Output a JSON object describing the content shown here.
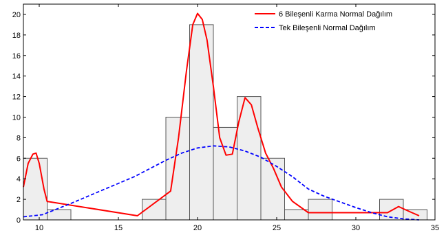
{
  "chart_data": {
    "type": "bar",
    "xlim": [
      9,
      35
    ],
    "ylim": [
      0,
      21
    ],
    "x_ticks": [
      10,
      15,
      20,
      25,
      30,
      35
    ],
    "y_ticks": [
      0,
      2,
      4,
      6,
      8,
      10,
      12,
      14,
      16,
      18,
      20
    ],
    "x_tick_labels": [
      "10",
      "15",
      "20",
      "25",
      "30",
      "35"
    ],
    "y_tick_labels": [
      "0",
      "2",
      "4",
      "6",
      "8",
      "10",
      "12",
      "14",
      "16",
      "18",
      "20"
    ],
    "grid": false,
    "legend_position": "top-right",
    "histogram": {
      "bin_width": 1.5,
      "bins": [
        {
          "start": 9.0,
          "count": 6
        },
        {
          "start": 10.5,
          "count": 1
        },
        {
          "start": 12.0,
          "count": 0
        },
        {
          "start": 13.5,
          "count": 0
        },
        {
          "start": 15.0,
          "count": 0
        },
        {
          "start": 16.5,
          "count": 2
        },
        {
          "start": 18.0,
          "count": 10
        },
        {
          "start": 19.5,
          "count": 19
        },
        {
          "start": 21.0,
          "count": 9
        },
        {
          "start": 22.5,
          "count": 12
        },
        {
          "start": 24.0,
          "count": 6
        },
        {
          "start": 25.5,
          "count": 1
        },
        {
          "start": 27.0,
          "count": 2
        },
        {
          "start": 28.5,
          "count": 0
        },
        {
          "start": 30.0,
          "count": 0
        },
        {
          "start": 31.5,
          "count": 2
        },
        {
          "start": 33.0,
          "count": 1
        }
      ],
      "fill_color": "#eeeeee",
      "edge_color": "#555555"
    },
    "series": [
      {
        "name": "6 Bileşenli Karma Normal Dağılım",
        "style": "solid",
        "color": "#ff0000",
        "x": [
          9.0,
          9.3,
          9.6,
          9.8,
          10.0,
          10.3,
          10.5,
          16.2,
          18.3,
          18.8,
          19.3,
          19.7,
          20.0,
          20.3,
          20.6,
          21.0,
          21.4,
          21.8,
          22.2,
          22.6,
          23.0,
          23.4,
          23.8,
          24.3,
          24.8,
          25.3,
          26.0,
          27.0,
          32.0,
          32.7,
          33.4,
          34.0
        ],
        "y": [
          3.2,
          5.5,
          6.4,
          6.5,
          5.5,
          3.0,
          1.8,
          0.4,
          2.8,
          8.0,
          14.5,
          19.0,
          20.1,
          19.5,
          17.5,
          13.0,
          8.0,
          6.3,
          6.4,
          9.5,
          11.9,
          11.2,
          9.0,
          6.5,
          5.0,
          3.2,
          1.8,
          0.7,
          0.7,
          1.3,
          0.8,
          0.4
        ]
      },
      {
        "name": "Tek Bileşenli Normal Dağılım",
        "style": "dashed",
        "color": "#0000ff",
        "x": [
          9.0,
          10.2,
          12.0,
          14.0,
          16.0,
          18.0,
          19.0,
          20.0,
          21.0,
          22.0,
          23.0,
          24.0,
          25.0,
          26.0,
          27.0,
          28.0,
          30.0,
          31.0,
          32.0,
          33.0,
          34.0
        ],
        "y": [
          0.3,
          0.5,
          1.6,
          2.9,
          4.2,
          5.8,
          6.5,
          7.0,
          7.2,
          7.1,
          6.7,
          6.1,
          5.2,
          4.2,
          3.0,
          2.3,
          1.2,
          0.7,
          0.3,
          0.1,
          0.0
        ]
      }
    ]
  }
}
